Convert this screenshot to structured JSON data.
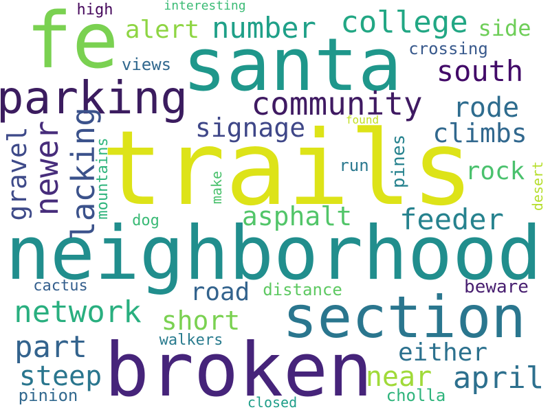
{
  "words": {
    "trails": {
      "text": "trails",
      "color": "#DDE318"
    },
    "neighborhood": {
      "text": "neighborhood",
      "color": "#218E8D"
    },
    "santa": {
      "text": "santa",
      "color": "#1F978B"
    },
    "broken": {
      "text": "broken",
      "color": "#46247A"
    },
    "section": {
      "text": "section",
      "color": "#2A768E"
    },
    "fe": {
      "text": "fe",
      "color": "#7AD151"
    },
    "parking": {
      "text": "parking",
      "color": "#3B1C5F"
    },
    "community": {
      "text": "community",
      "color": "#3F1A62"
    },
    "college": {
      "text": "college",
      "color": "#22A784"
    },
    "number": {
      "text": "number",
      "color": "#1FA088"
    },
    "south": {
      "text": "south",
      "color": "#420A68"
    },
    "rode": {
      "text": "rode",
      "color": "#2E6C8E"
    },
    "alert": {
      "text": "alert",
      "color": "#8ED543"
    },
    "signage": {
      "text": "signage",
      "color": "#3F4788"
    },
    "climbs": {
      "text": "climbs",
      "color": "#31688E"
    },
    "side": {
      "text": "side",
      "color": "#6ECE58"
    },
    "crossing": {
      "text": "crossing",
      "color": "#38598C"
    },
    "views": {
      "text": "views",
      "color": "#31688E"
    },
    "high": {
      "text": "high",
      "color": "#46085C"
    },
    "interesting": {
      "text": "interesting",
      "color": "#3BBB75"
    },
    "found": {
      "text": "found",
      "color": "#C2DF23"
    },
    "run": {
      "text": "run",
      "color": "#2A788E"
    },
    "rock": {
      "text": "rock",
      "color": "#4AC16D"
    },
    "feeder": {
      "text": "feeder",
      "color": "#26828E"
    },
    "asphalt": {
      "text": "asphalt",
      "color": "#52C569"
    },
    "dog": {
      "text": "dog",
      "color": "#3ABA76"
    },
    "cactus": {
      "text": "cactus",
      "color": "#345F8D"
    },
    "road": {
      "text": "road",
      "color": "#33638D"
    },
    "distance": {
      "text": "distance",
      "color": "#5EC962"
    },
    "beware": {
      "text": "beware",
      "color": "#481F70"
    },
    "network": {
      "text": "network",
      "color": "#29AF7F"
    },
    "short": {
      "text": "short",
      "color": "#7AD151"
    },
    "walkers": {
      "text": "walkers",
      "color": "#297B8E"
    },
    "part": {
      "text": "part",
      "color": "#33638D"
    },
    "either": {
      "text": "either",
      "color": "#2C718E"
    },
    "steep": {
      "text": "steep",
      "color": "#2A768E"
    },
    "near": {
      "text": "near",
      "color": "#A0DA39"
    },
    "april": {
      "text": "april",
      "color": "#2D708E"
    },
    "pinion": {
      "text": "pinion",
      "color": "#31688E"
    },
    "cholla": {
      "text": "cholla",
      "color": "#2FB47C"
    },
    "closed": {
      "text": "closed",
      "color": "#1F9E89"
    },
    "newer": {
      "text": "newer",
      "color": "#472D7B"
    },
    "gravel": {
      "text": "gravel",
      "color": "#3E4A89"
    },
    "lacking": {
      "text": "lacking",
      "color": "#3B528B"
    },
    "mountains": {
      "text": "mountains",
      "color": "#2FB47C"
    },
    "make": {
      "text": "make",
      "color": "#4AC16D"
    },
    "pines": {
      "text": "pines",
      "color": "#26828E"
    },
    "desert": {
      "text": "desert",
      "color": "#B5DE2B"
    }
  }
}
